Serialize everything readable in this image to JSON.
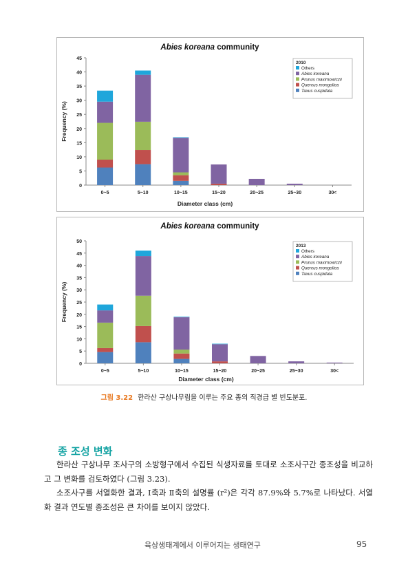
{
  "charts": [
    {
      "title_italic": "Abies koreana",
      "title_rest": " community",
      "legend_title": "2010",
      "ylabel": "Frequency (%)",
      "xlabel": "Diameter class (cm)",
      "categories": [
        "0~5",
        "5~10",
        "10~15",
        "15~20",
        "20~25",
        "25~30",
        "30<"
      ],
      "yticks": [
        "0",
        "5",
        "10",
        "15",
        "20",
        "25",
        "30",
        "35",
        "40",
        "45"
      ]
    },
    {
      "title_italic": "Abies koreana",
      "title_rest": " community",
      "legend_title": "2013",
      "ylabel": "Frequency (%)",
      "xlabel": "Diameter class (cm)",
      "categories": [
        "0~5",
        "5~10",
        "10~15",
        "15~20",
        "20~25",
        "25~30",
        "30<"
      ],
      "yticks": [
        "0",
        "5",
        "10",
        "15",
        "20",
        "25",
        "30",
        "35",
        "40",
        "45",
        "50"
      ]
    }
  ],
  "chart_data": [
    {
      "type": "bar",
      "stacked": true,
      "title": "Abies koreana community",
      "legend_title": "2010",
      "xlabel": "Diameter class (cm)",
      "ylabel": "Frequency (%)",
      "ylim": [
        0,
        45
      ],
      "categories": [
        "0~5",
        "5~10",
        "10~15",
        "15~20",
        "20~25",
        "25~30",
        "30<"
      ],
      "legend_position": "top-right",
      "series": [
        {
          "name": "Taxus cuspidata",
          "color": "#4f81bd",
          "values": [
            6.2,
            7.4,
            1.5,
            0,
            0,
            0,
            0
          ]
        },
        {
          "name": "Quercus mongolica",
          "color": "#c0504d",
          "values": [
            2.8,
            5.0,
            2.0,
            0.5,
            0,
            0,
            0
          ]
        },
        {
          "name": "Prunus maximowiczii",
          "color": "#9bbb59",
          "values": [
            13.0,
            10.0,
            1.0,
            0,
            0,
            0,
            0
          ]
        },
        {
          "name": "Abies koreana",
          "color": "#8064a2",
          "values": [
            7.5,
            16.6,
            12.2,
            6.8,
            2.2,
            0.5,
            0
          ]
        },
        {
          "name": "Others",
          "color": "#1fa6db",
          "values": [
            3.9,
            1.5,
            0.2,
            0,
            0,
            0,
            0
          ]
        }
      ]
    },
    {
      "type": "bar",
      "stacked": true,
      "title": "Abies koreana community",
      "legend_title": "2013",
      "xlabel": "Diameter class (cm)",
      "ylabel": "Frequency (%)",
      "ylim": [
        0,
        50
      ],
      "categories": [
        "0~5",
        "5~10",
        "10~15",
        "15~20",
        "20~25",
        "25~30",
        "30<"
      ],
      "legend_position": "top-right",
      "series": [
        {
          "name": "Taxus cuspidata",
          "color": "#4f81bd",
          "values": [
            4.6,
            8.6,
            1.8,
            0,
            0,
            0,
            0
          ]
        },
        {
          "name": "Quercus mongolica",
          "color": "#c0504d",
          "values": [
            1.6,
            6.6,
            2.2,
            0.8,
            0,
            0,
            0
          ]
        },
        {
          "name": "Prunus maximowiczii",
          "color": "#9bbb59",
          "values": [
            10.4,
            12.4,
            1.6,
            0,
            0,
            0,
            0
          ]
        },
        {
          "name": "Abies koreana",
          "color": "#8064a2",
          "values": [
            5.0,
            16.2,
            13.2,
            7.0,
            3.0,
            0.8,
            0.3
          ]
        },
        {
          "name": "Others",
          "color": "#1fa6db",
          "values": [
            2.4,
            2.2,
            0.2,
            0.2,
            0,
            0,
            0
          ]
        }
      ]
    }
  ],
  "caption": {
    "figure_number": "그림 3.22",
    "text": "한라산 구상나무림을 이루는 주요 종의 직경급 별 빈도분포."
  },
  "section": {
    "title": "종 조성 변화",
    "paragraphs": [
      "한라산 구상나무 조사구의 소방형구에서 수집된 식생자료를 토대로 소조사구간 종조성을 비교하고 그 변화를 검토하였다 (그림 3.23).",
      "소조사구를 서열화한 결과, Ⅰ축과 Ⅱ축의 설명률 (r²)은 각각 87.9%와 5.7%로 나타났다. 서열화 결과 연도별 종조성은 큰 차이를 보이지 않았다."
    ]
  },
  "footer": {
    "title": "육상생태계에서 이루어지는 생태연구",
    "page_number": "95"
  }
}
